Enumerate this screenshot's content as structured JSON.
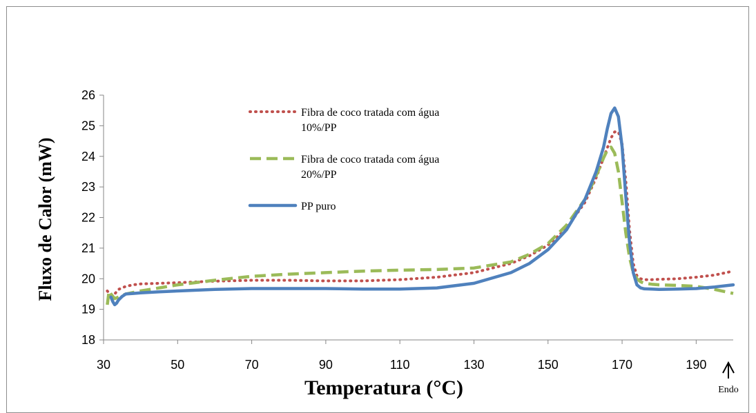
{
  "chart_data": {
    "type": "line",
    "title": "",
    "xlabel": "Temperatura (°C)",
    "ylabel": "Fluxo de Calor (mW)",
    "xlim": [
      30,
      200
    ],
    "ylim": [
      18,
      26
    ],
    "xticks": [
      30,
      50,
      70,
      90,
      110,
      130,
      150,
      170,
      190
    ],
    "yticks": [
      18,
      19,
      20,
      21,
      22,
      23,
      24,
      25,
      26
    ],
    "grid": false,
    "legend_position": "upper-left inside plot",
    "annotation": "Endo",
    "series": [
      {
        "name": "Fibra de coco tratada com água 10%/PP",
        "name_lines": [
          "Fibra de coco tratada com água",
          "10%/PP"
        ],
        "color": "#c0504d",
        "style": "dotted",
        "x": [
          31,
          32,
          33,
          34,
          36,
          38,
          40,
          45,
          50,
          60,
          70,
          80,
          90,
          100,
          110,
          120,
          130,
          140,
          145,
          150,
          155,
          160,
          163,
          165,
          167,
          168,
          169,
          170,
          171,
          172,
          173,
          174,
          175,
          176,
          178,
          180,
          185,
          190,
          195,
          200
        ],
        "y": [
          19.6,
          19.45,
          19.5,
          19.65,
          19.75,
          19.8,
          19.83,
          19.85,
          19.87,
          19.92,
          19.95,
          19.95,
          19.93,
          19.93,
          19.97,
          20.05,
          20.2,
          20.5,
          20.75,
          21.1,
          21.65,
          22.5,
          23.3,
          23.95,
          24.6,
          24.8,
          24.8,
          24.4,
          23.2,
          21.6,
          20.5,
          20.1,
          20.0,
          19.97,
          19.97,
          19.98,
          20.0,
          20.05,
          20.12,
          20.25
        ]
      },
      {
        "name": "Fibra de coco tratada com água 20%/PP",
        "name_lines": [
          "Fibra de coco tratada com água",
          "20%/PP"
        ],
        "color": "#9bbb59",
        "style": "dashed",
        "x": [
          31,
          31.5,
          32,
          33,
          34,
          36,
          40,
          45,
          50,
          60,
          70,
          80,
          90,
          100,
          110,
          120,
          130,
          140,
          145,
          150,
          155,
          160,
          162,
          164,
          165,
          166,
          167,
          168,
          169,
          170,
          171,
          172,
          173,
          174,
          175,
          176,
          178,
          180,
          185,
          190,
          195,
          200
        ],
        "y": [
          19.15,
          19.6,
          19.5,
          19.35,
          19.4,
          19.5,
          19.6,
          19.7,
          19.8,
          19.95,
          20.08,
          20.15,
          20.2,
          20.25,
          20.28,
          20.3,
          20.35,
          20.55,
          20.8,
          21.15,
          21.75,
          22.6,
          23.1,
          23.65,
          23.95,
          24.2,
          24.3,
          24.1,
          23.5,
          22.5,
          21.5,
          20.7,
          20.2,
          20.0,
          19.9,
          19.85,
          19.82,
          19.8,
          19.78,
          19.75,
          19.65,
          19.52
        ]
      },
      {
        "name": "PP puro",
        "name_lines": [
          "PP puro"
        ],
        "color": "#4f81bd",
        "style": "solid",
        "x": [
          32,
          32.5,
          33,
          33.5,
          34,
          35,
          36,
          38,
          40,
          45,
          50,
          60,
          70,
          80,
          90,
          100,
          110,
          120,
          130,
          140,
          145,
          150,
          155,
          160,
          163,
          165,
          166,
          167,
          168,
          169,
          170,
          171,
          172,
          173,
          174,
          175,
          176,
          178,
          180,
          185,
          190,
          195,
          200
        ],
        "y": [
          19.4,
          19.25,
          19.15,
          19.2,
          19.3,
          19.42,
          19.5,
          19.52,
          19.54,
          19.57,
          19.6,
          19.65,
          19.68,
          19.68,
          19.68,
          19.66,
          19.66,
          19.7,
          19.85,
          20.2,
          20.5,
          20.95,
          21.6,
          22.6,
          23.5,
          24.3,
          24.9,
          25.4,
          25.58,
          25.3,
          24.3,
          22.7,
          21.2,
          20.2,
          19.8,
          19.7,
          19.67,
          19.66,
          19.65,
          19.66,
          19.68,
          19.73,
          19.8
        ]
      }
    ]
  }
}
